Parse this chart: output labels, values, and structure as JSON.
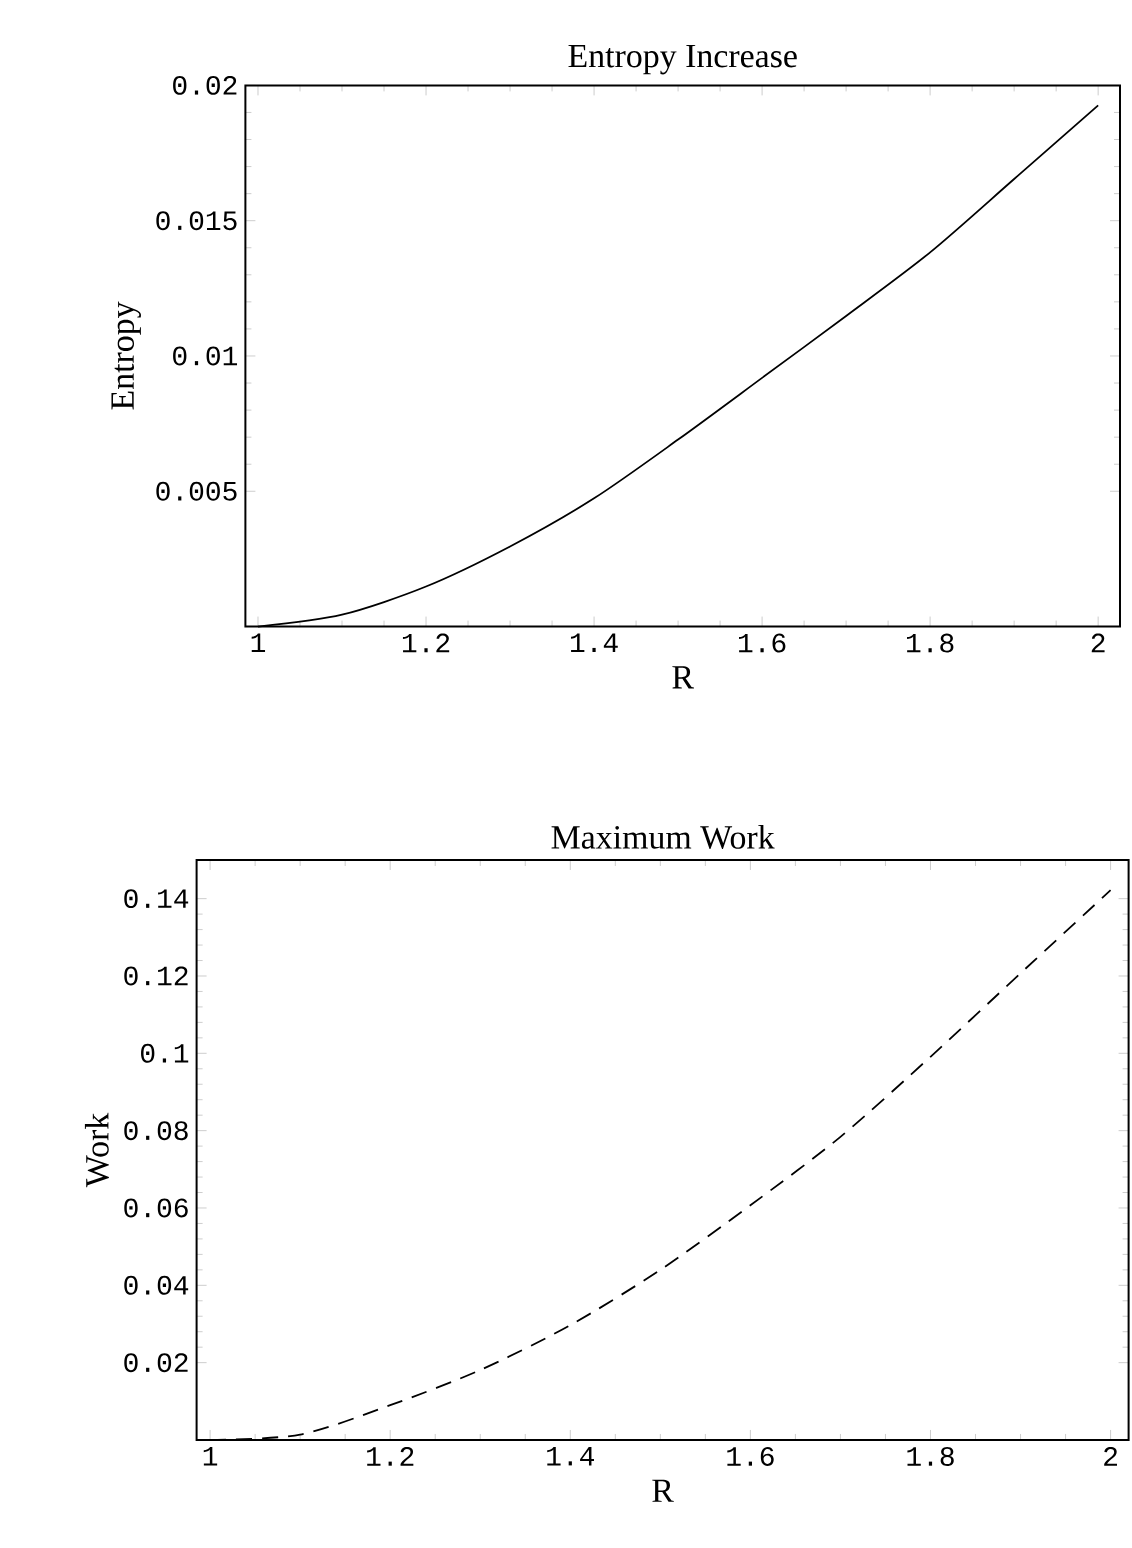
{
  "chart_data": [
    {
      "type": "line",
      "title": "Entropy Increase",
      "xlabel": "R",
      "ylabel": "Entropy",
      "xlim": [
        0.985,
        2.026
      ],
      "ylim": [
        0,
        0.02
      ],
      "xticks": [
        1,
        1.2,
        1.4,
        1.6,
        1.8,
        2
      ],
      "yticks": [
        0.005,
        0.01,
        0.015,
        0.02
      ],
      "line_style": "solid",
      "color": "#000000",
      "x": [
        1,
        1.1,
        1.2,
        1.3,
        1.4,
        1.5,
        1.6,
        1.7,
        1.8,
        1.9,
        2
      ],
      "values": [
        0,
        0.00044,
        0.00148,
        0.00296,
        0.00474,
        0.00691,
        0.00919,
        0.01148,
        0.01383,
        0.01654,
        0.01926
      ]
    },
    {
      "type": "line",
      "title": "Maximum Work",
      "xlabel": "R",
      "ylabel": "Work",
      "xlim": [
        0.985,
        2.02
      ],
      "ylim": [
        0,
        0.15
      ],
      "xticks": [
        1,
        1.2,
        1.4,
        1.6,
        1.8,
        2
      ],
      "yticks": [
        0.02,
        0.04,
        0.06,
        0.08,
        0.1,
        0.12,
        0.14
      ],
      "line_style": "dashed",
      "color": "#000000",
      "x": [
        1,
        1.1,
        1.2,
        1.3,
        1.4,
        1.5,
        1.6,
        1.7,
        1.8,
        1.9,
        2
      ],
      "values": [
        0,
        0.0014,
        0.009,
        0.0181,
        0.0297,
        0.044,
        0.0607,
        0.0784,
        0.0991,
        0.1207,
        0.1422
      ]
    }
  ]
}
